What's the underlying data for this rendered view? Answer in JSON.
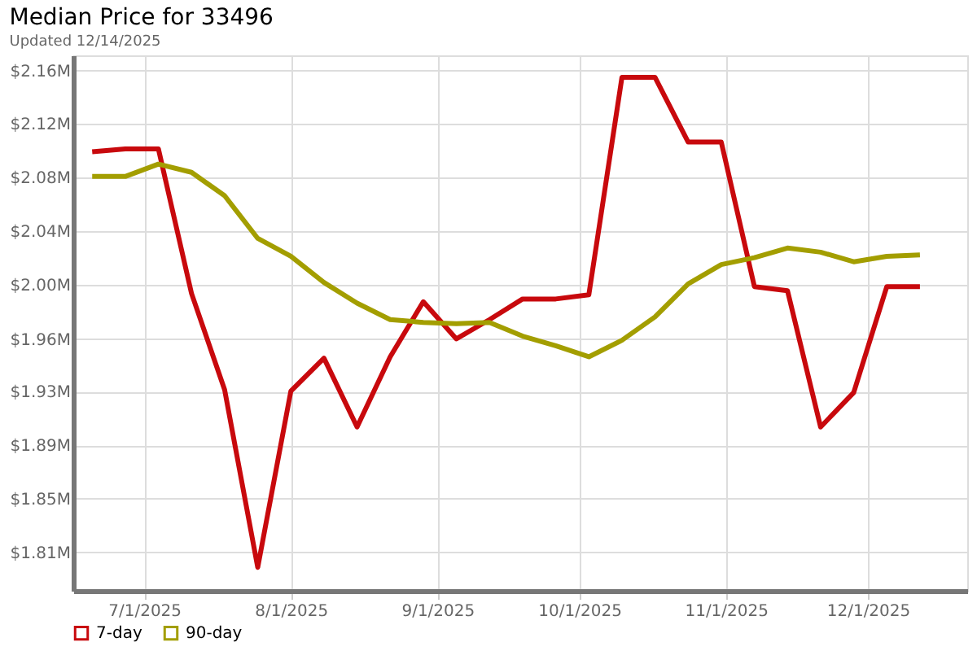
{
  "chart_data": {
    "type": "line",
    "title": "Median Price for 33496",
    "subtitle": "Updated 12/14/2025",
    "x": [
      "2025-06-20",
      "2025-06-27",
      "2025-07-04",
      "2025-07-11",
      "2025-07-18",
      "2025-07-25",
      "2025-08-01",
      "2025-08-08",
      "2025-08-15",
      "2025-08-22",
      "2025-08-29",
      "2025-09-05",
      "2025-09-12",
      "2025-09-19",
      "2025-09-26",
      "2025-10-03",
      "2025-10-10",
      "2025-10-17",
      "2025-10-24",
      "2025-10-31",
      "2025-11-07",
      "2025-11-14",
      "2025-11-21",
      "2025-11-28",
      "2025-12-05",
      "2025-12-12"
    ],
    "series": [
      {
        "name": "7-day",
        "color": "#c8090d",
        "values": [
          2.101,
          2.103,
          2.103,
          1.998,
          1.928,
          1.799,
          1.927,
          1.951,
          1.901,
          1.952,
          1.992,
          1.965,
          1.979,
          1.994,
          1.994,
          1.997,
          2.155,
          2.155,
          2.108,
          2.108,
          2.003,
          2.0,
          1.901,
          1.926,
          2.003,
          2.003
        ]
      },
      {
        "name": "90-day",
        "color": "#a39e00",
        "values": [
          2.083,
          2.083,
          2.092,
          2.086,
          2.069,
          2.038,
          2.025,
          2.006,
          1.991,
          1.979,
          1.977,
          1.976,
          1.977,
          1.967,
          1.96,
          1.952,
          1.964,
          1.981,
          2.005,
          2.019,
          2.024,
          2.031,
          2.028,
          2.021,
          2.025,
          2.026
        ]
      }
    ],
    "xlim": [
      "2025-06-16",
      "2025-12-22"
    ],
    "xticks": [
      {
        "value": "2025-07-01",
        "label": "7/1/2025"
      },
      {
        "value": "2025-08-01",
        "label": "8/1/2025"
      },
      {
        "value": "2025-09-01",
        "label": "9/1/2025"
      },
      {
        "value": "2025-10-01",
        "label": "10/1/2025"
      },
      {
        "value": "2025-11-01",
        "label": "11/1/2025"
      },
      {
        "value": "2025-12-01",
        "label": "12/1/2025"
      }
    ],
    "ylim": [
      1.782,
      2.171
    ],
    "yticks": [
      {
        "value": 1.81,
        "label": "$1.81M"
      },
      {
        "value": 1.8489,
        "label": "$1.85M"
      },
      {
        "value": 1.8878,
        "label": "$1.89M"
      },
      {
        "value": 1.9267,
        "label": "$1.93M"
      },
      {
        "value": 1.9649,
        "label": "$1.96M"
      },
      {
        "value": 2.0044,
        "label": "$2.00M"
      },
      {
        "value": 2.0433,
        "label": "$2.04M"
      },
      {
        "value": 2.0822,
        "label": "$2.08M"
      },
      {
        "value": 2.1211,
        "label": "$2.12M"
      },
      {
        "value": 2.16,
        "label": "$2.16M"
      }
    ],
    "grid": true,
    "legend": "bottom left"
  }
}
